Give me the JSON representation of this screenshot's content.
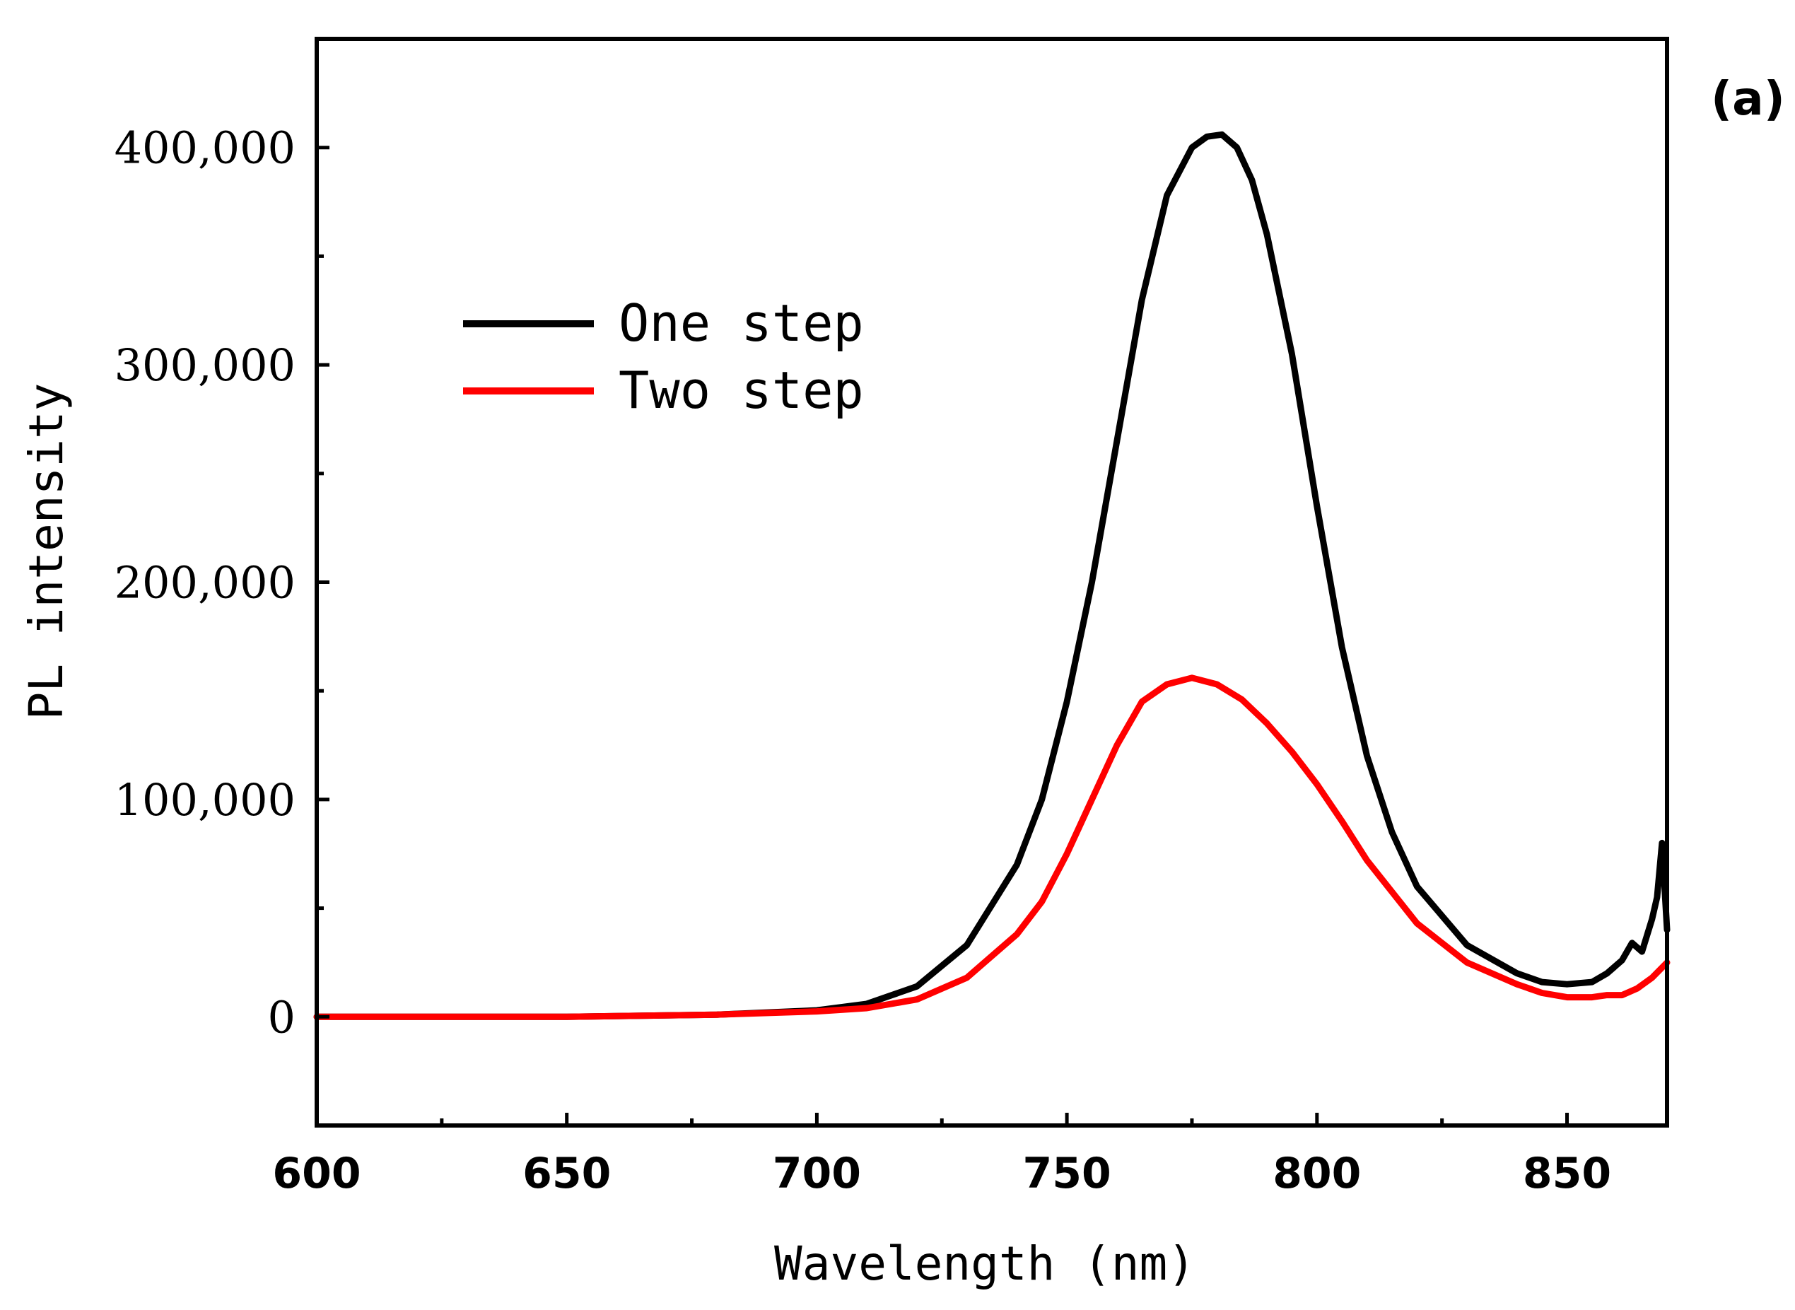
{
  "panel_label": "(a)",
  "chart_data": {
    "type": "line",
    "title": "",
    "xlabel": "Wavelength (nm)",
    "ylabel": "PL intensity",
    "xlim": [
      600,
      870
    ],
    "ylim": [
      -50000,
      450000
    ],
    "x_ticks": [
      600,
      650,
      700,
      750,
      800,
      850
    ],
    "x_tick_labels": [
      "600",
      "650",
      "700",
      "750",
      "800",
      "850"
    ],
    "y_ticks": [
      0,
      100000,
      200000,
      300000,
      400000
    ],
    "y_tick_labels": [
      "0",
      "100,000",
      "200,000",
      "300,000",
      "400,000"
    ],
    "legend": {
      "position": "upper-left",
      "entries": [
        "One step",
        "Two step"
      ]
    },
    "series": [
      {
        "name": "One step",
        "color": "#000000",
        "x": [
          600,
          650,
          680,
          700,
          710,
          720,
          730,
          740,
          745,
          750,
          755,
          760,
          765,
          770,
          775,
          778,
          781,
          784,
          787,
          790,
          795,
          800,
          805,
          810,
          815,
          820,
          830,
          840,
          845,
          850,
          855,
          858,
          861,
          863,
          865,
          867,
          868,
          869,
          870
        ],
        "values": [
          0,
          0,
          1000,
          3000,
          6000,
          14000,
          33000,
          70000,
          100000,
          145000,
          200000,
          265000,
          330000,
          378000,
          400000,
          405000,
          406000,
          400000,
          385000,
          360000,
          305000,
          235000,
          170000,
          120000,
          85000,
          60000,
          33000,
          20000,
          16000,
          15000,
          16000,
          20000,
          26000,
          34000,
          30000,
          45000,
          55000,
          80000,
          40000
        ]
      },
      {
        "name": "Two step",
        "color": "#ff0000",
        "x": [
          600,
          650,
          680,
          700,
          710,
          720,
          730,
          740,
          745,
          750,
          755,
          760,
          765,
          770,
          775,
          780,
          785,
          790,
          795,
          800,
          805,
          810,
          820,
          830,
          840,
          845,
          850,
          855,
          858,
          861,
          864,
          867,
          870
        ],
        "values": [
          0,
          0,
          1000,
          2500,
          4000,
          8000,
          18000,
          38000,
          53000,
          75000,
          100000,
          125000,
          145000,
          153000,
          156000,
          153000,
          146000,
          135000,
          122000,
          107000,
          90000,
          72000,
          43000,
          25000,
          15000,
          11000,
          9000,
          9000,
          10000,
          10000,
          13000,
          18000,
          25000
        ]
      }
    ]
  }
}
